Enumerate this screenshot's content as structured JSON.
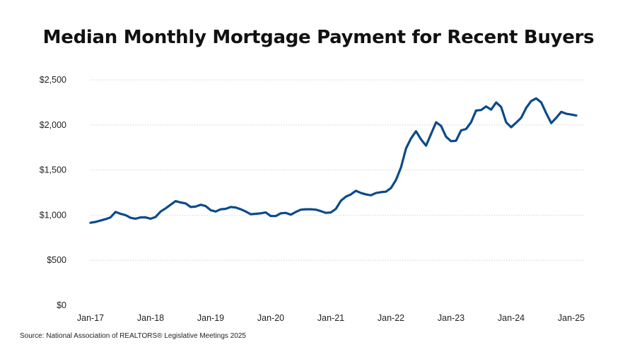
{
  "chart_data": {
    "type": "line",
    "title": "Median Monthly Mortgage Payment for Recent Buyers",
    "source": "Source: National Association of REALTORS® Legislative Meetings 2025",
    "y_tick_labels": [
      "$0",
      "$500",
      "$1,000",
      "$1,500",
      "$2,000",
      "$2,500"
    ],
    "y_ticks": [
      0,
      500,
      1000,
      1500,
      2000,
      2500
    ],
    "ylim": [
      0,
      2500
    ],
    "x_tick_labels": [
      "Jan-17",
      "Jan-18",
      "Jan-19",
      "Jan-20",
      "Jan-21",
      "Jan-22",
      "Jan-23",
      "Jan-24",
      "Jan-25"
    ],
    "x_range": [
      "2017-01",
      "2025-01"
    ],
    "grid": "horizontal dotted",
    "line_color": "#0b4a8b",
    "series": [
      {
        "x": [
          "2017-01",
          "2017-02",
          "2017-03",
          "2017-04",
          "2017-05",
          "2017-06",
          "2017-07",
          "2017-08",
          "2017-09",
          "2017-10",
          "2017-11",
          "2017-12",
          "2018-01",
          "2018-02",
          "2018-03",
          "2018-04",
          "2018-05",
          "2018-06",
          "2018-07",
          "2018-08",
          "2018-09",
          "2018-10",
          "2018-11",
          "2018-12",
          "2019-01",
          "2019-02",
          "2019-03",
          "2019-04",
          "2019-05",
          "2019-06",
          "2019-07",
          "2019-08",
          "2019-09",
          "2019-10",
          "2019-11",
          "2019-12",
          "2020-01",
          "2020-02",
          "2020-03",
          "2020-04",
          "2020-05",
          "2020-06",
          "2020-07",
          "2020-08",
          "2020-09",
          "2020-10",
          "2020-11",
          "2020-12",
          "2021-01",
          "2021-02",
          "2021-03",
          "2021-04",
          "2021-05",
          "2021-06",
          "2021-07",
          "2021-08",
          "2021-09",
          "2021-10",
          "2021-11",
          "2021-12",
          "2022-01",
          "2022-02",
          "2022-03",
          "2022-04",
          "2022-05",
          "2022-06",
          "2022-07",
          "2022-08",
          "2022-09",
          "2022-10",
          "2022-11",
          "2022-12",
          "2023-01",
          "2023-02",
          "2023-03",
          "2023-04",
          "2023-05",
          "2023-06",
          "2023-07",
          "2023-08",
          "2023-09",
          "2023-10",
          "2023-11",
          "2023-12",
          "2024-01",
          "2024-02",
          "2024-03",
          "2024-04",
          "2024-05",
          "2024-06",
          "2024-07",
          "2024-08",
          "2024-09",
          "2024-10",
          "2024-11",
          "2024-12",
          "2025-01",
          "2025-02"
        ],
        "values": [
          915,
          925,
          940,
          955,
          975,
          1035,
          1015,
          1000,
          970,
          960,
          975,
          975,
          960,
          980,
          1040,
          1075,
          1115,
          1155,
          1140,
          1130,
          1090,
          1095,
          1115,
          1100,
          1055,
          1040,
          1065,
          1070,
          1090,
          1085,
          1065,
          1040,
          1010,
          1015,
          1020,
          1030,
          990,
          990,
          1020,
          1025,
          1005,
          1035,
          1060,
          1065,
          1065,
          1060,
          1045,
          1025,
          1030,
          1070,
          1160,
          1205,
          1230,
          1270,
          1245,
          1230,
          1220,
          1245,
          1255,
          1260,
          1300,
          1390,
          1530,
          1740,
          1850,
          1930,
          1840,
          1770,
          1900,
          2030,
          1990,
          1870,
          1820,
          1825,
          1940,
          1955,
          2030,
          2160,
          2165,
          2205,
          2170,
          2250,
          2200,
          2030,
          1975,
          2025,
          2080,
          2190,
          2265,
          2295,
          2250,
          2130,
          2020,
          2080,
          2145,
          2125,
          2115,
          2105
        ]
      }
    ]
  }
}
